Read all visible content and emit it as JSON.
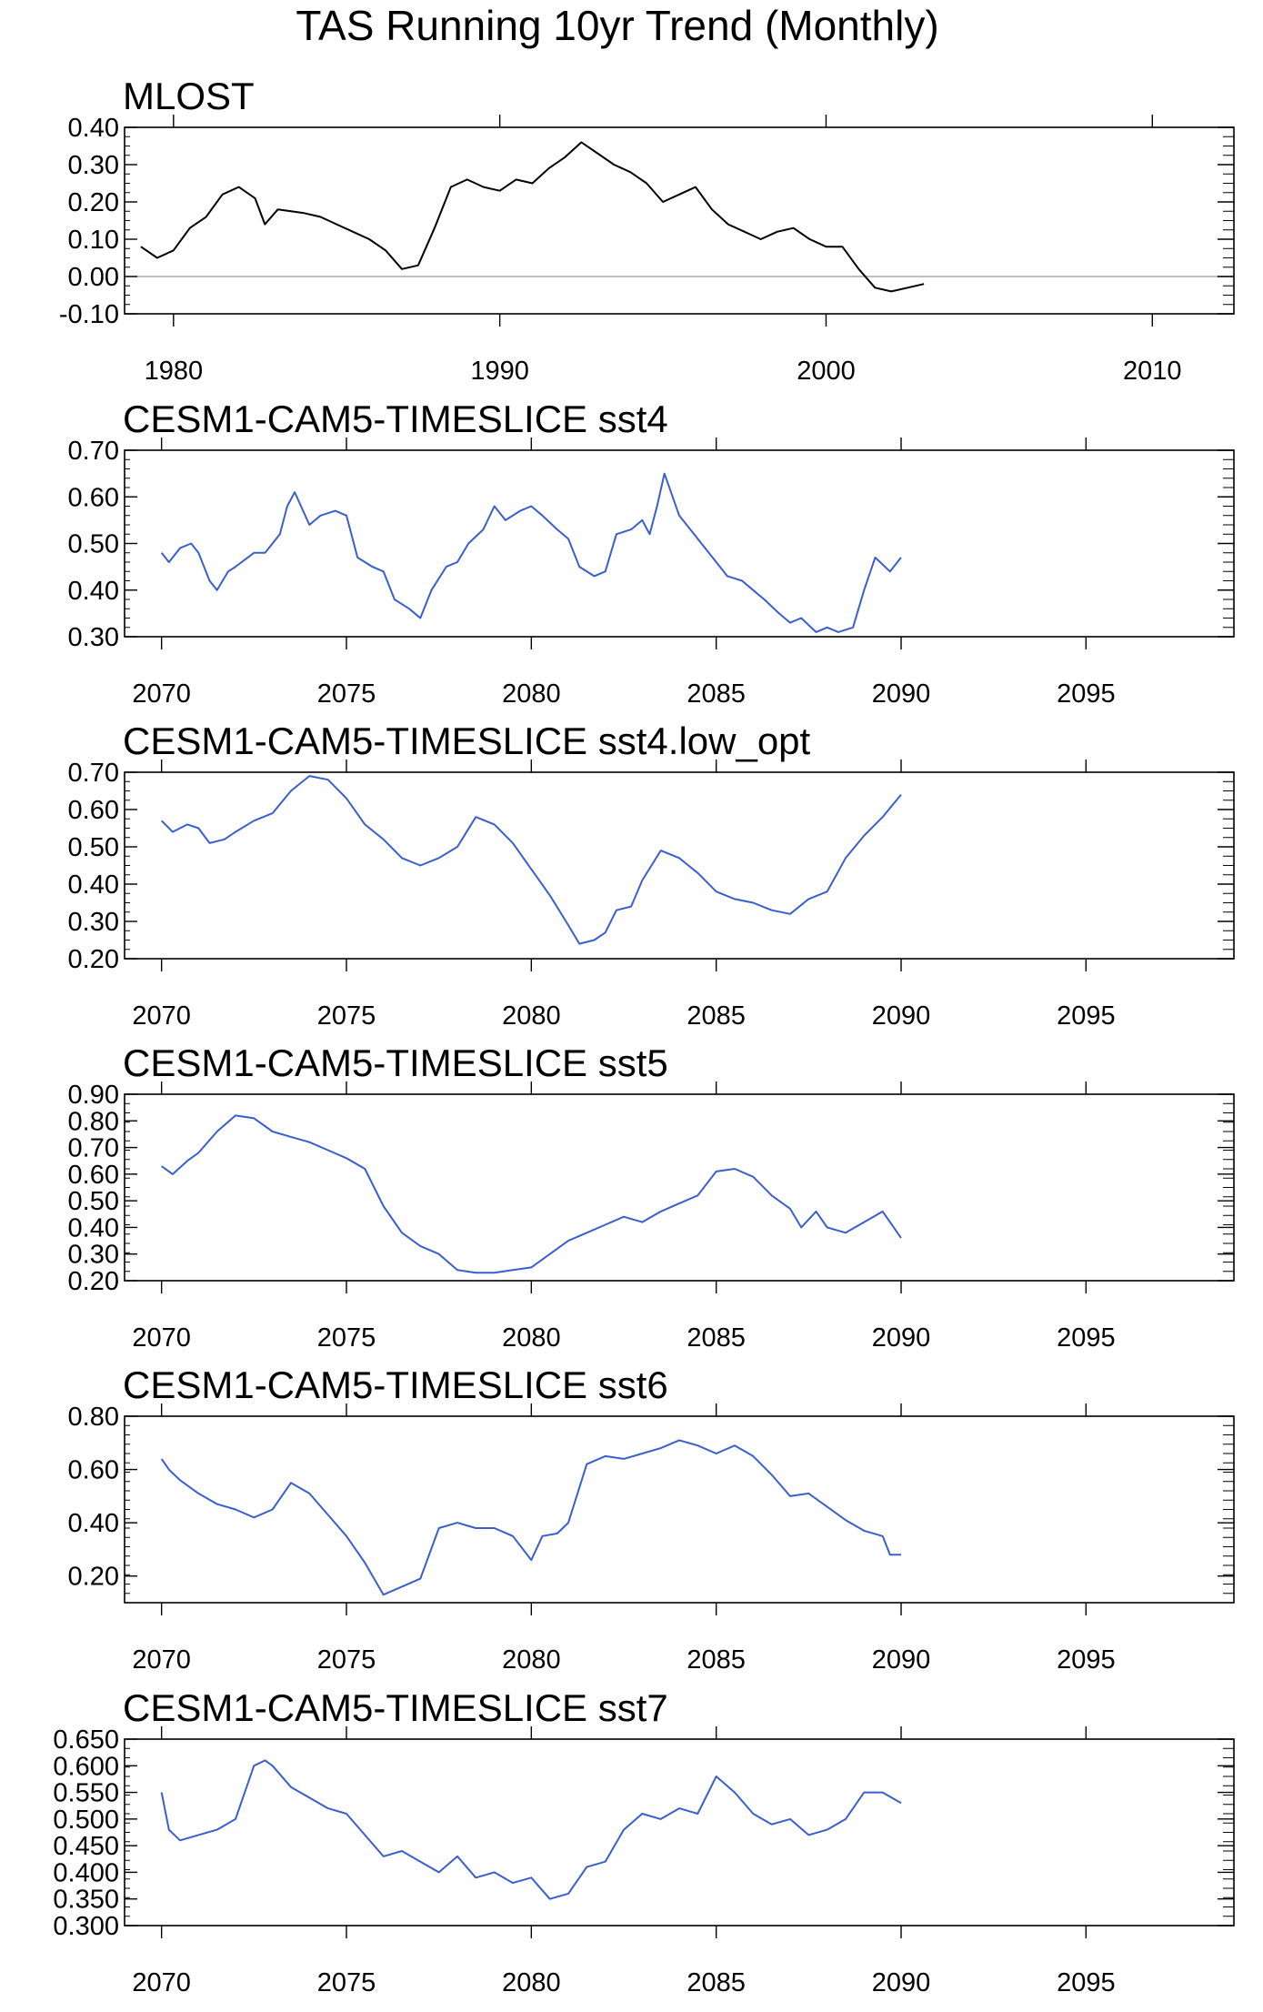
{
  "figure": {
    "title": "TAS Running 10yr Trend (Monthly)"
  },
  "chart_data": [
    {
      "type": "line",
      "title": "MLOST",
      "xlim": [
        1978.5,
        2012.5
      ],
      "ylim": [
        -0.1,
        0.4
      ],
      "xticks": [
        1980,
        1990,
        2000,
        2010
      ],
      "xtick_labels": [
        "1980",
        "1990",
        "2000",
        "2010"
      ],
      "yticks": [
        -0.1,
        0.0,
        0.1,
        0.2,
        0.3,
        0.4
      ],
      "ytick_labels": [
        "-0.10",
        "0.00",
        "0.10",
        "0.20",
        "0.30",
        "0.40"
      ],
      "reference_line": 0.0,
      "color": "#000000",
      "series": [
        {
          "x": [
            1979.0,
            1979.5,
            1980.0,
            1980.5,
            1981.0,
            1981.5,
            1982.0,
            1982.5,
            1982.8,
            1983.2,
            1984.0,
            1984.5,
            1985.0,
            1985.5,
            1986.0,
            1986.5,
            1987.0,
            1987.5,
            1988.0,
            1988.5,
            1989.0,
            1989.5,
            1990.0,
            1990.5,
            1991.0,
            1991.5,
            1992.0,
            1992.5,
            1993.0,
            1993.5,
            1994.0,
            1994.5,
            1995.0,
            1995.5,
            1996.0,
            1996.5,
            1997.0,
            1997.5,
            1998.0,
            1998.5,
            1999.0,
            1999.5,
            2000.0,
            2000.5,
            2001.0,
            2001.5,
            2002.0,
            2002.5,
            2003.0
          ],
          "y": [
            0.08,
            0.05,
            0.07,
            0.13,
            0.16,
            0.22,
            0.24,
            0.21,
            0.14,
            0.18,
            0.17,
            0.16,
            0.14,
            0.12,
            0.1,
            0.07,
            0.02,
            0.03,
            0.13,
            0.24,
            0.26,
            0.24,
            0.23,
            0.26,
            0.25,
            0.29,
            0.32,
            0.36,
            0.33,
            0.3,
            0.28,
            0.25,
            0.2,
            0.22,
            0.24,
            0.18,
            0.14,
            0.12,
            0.1,
            0.12,
            0.13,
            0.1,
            0.08,
            0.08,
            0.02,
            -0.03,
            -0.04,
            -0.03,
            -0.02
          ]
        }
      ]
    },
    {
      "type": "line",
      "title": "CESM1-CAM5-TIMESLICE sst4",
      "xlim": [
        2069,
        2099
      ],
      "ylim": [
        0.3,
        0.7
      ],
      "xticks": [
        2070,
        2075,
        2080,
        2085,
        2090,
        2095
      ],
      "xtick_labels": [
        "2070",
        "2075",
        "2080",
        "2085",
        "2090",
        "2095"
      ],
      "yticks": [
        0.3,
        0.4,
        0.5,
        0.6,
        0.7
      ],
      "ytick_labels": [
        "0.30",
        "0.40",
        "0.50",
        "0.60",
        "0.70"
      ],
      "color": "#3a5fcd",
      "series": [
        {
          "x": [
            2070.0,
            2070.2,
            2070.5,
            2070.8,
            2071.0,
            2071.3,
            2071.5,
            2071.8,
            2072.0,
            2072.5,
            2072.8,
            2073.0,
            2073.2,
            2073.4,
            2073.6,
            2074.0,
            2074.3,
            2074.7,
            2075.0,
            2075.3,
            2075.7,
            2076.0,
            2076.3,
            2076.7,
            2077.0,
            2077.3,
            2077.7,
            2078.0,
            2078.3,
            2078.7,
            2079.0,
            2079.3,
            2079.7,
            2080.0,
            2080.3,
            2080.7,
            2081.0,
            2081.3,
            2081.7,
            2082.0,
            2082.3,
            2082.7,
            2083.0,
            2083.2,
            2083.4,
            2083.6,
            2084.0,
            2084.3,
            2084.7,
            2085.0,
            2085.3,
            2085.7,
            2086.0,
            2086.3,
            2086.7,
            2087.0,
            2087.3,
            2087.7,
            2088.0,
            2088.3,
            2088.7,
            2089.0,
            2089.3,
            2089.7,
            2090.0
          ],
          "y": [
            0.48,
            0.46,
            0.49,
            0.5,
            0.48,
            0.42,
            0.4,
            0.44,
            0.45,
            0.48,
            0.48,
            0.5,
            0.52,
            0.58,
            0.61,
            0.54,
            0.56,
            0.57,
            0.56,
            0.47,
            0.45,
            0.44,
            0.38,
            0.36,
            0.34,
            0.4,
            0.45,
            0.46,
            0.5,
            0.53,
            0.58,
            0.55,
            0.57,
            0.58,
            0.56,
            0.53,
            0.51,
            0.45,
            0.43,
            0.44,
            0.52,
            0.53,
            0.55,
            0.52,
            0.58,
            0.65,
            0.56,
            0.53,
            0.49,
            0.46,
            0.43,
            0.42,
            0.4,
            0.38,
            0.35,
            0.33,
            0.34,
            0.31,
            0.32,
            0.31,
            0.32,
            0.4,
            0.47,
            0.44,
            0.47
          ]
        }
      ]
    },
    {
      "type": "line",
      "title": "CESM1-CAM5-TIMESLICE sst4.low_opt",
      "xlim": [
        2069,
        2099
      ],
      "ylim": [
        0.2,
        0.7
      ],
      "xticks": [
        2070,
        2075,
        2080,
        2085,
        2090,
        2095
      ],
      "xtick_labels": [
        "2070",
        "2075",
        "2080",
        "2085",
        "2090",
        "2095"
      ],
      "yticks": [
        0.2,
        0.3,
        0.4,
        0.5,
        0.6,
        0.7
      ],
      "ytick_labels": [
        "0.20",
        "0.30",
        "0.40",
        "0.50",
        "0.60",
        "0.70"
      ],
      "color": "#3a5fcd",
      "series": [
        {
          "x": [
            2070.0,
            2070.3,
            2070.7,
            2071.0,
            2071.3,
            2071.7,
            2072.0,
            2072.5,
            2073.0,
            2073.5,
            2074.0,
            2074.5,
            2075.0,
            2075.5,
            2076.0,
            2076.5,
            2077.0,
            2077.5,
            2078.0,
            2078.5,
            2079.0,
            2079.5,
            2080.0,
            2080.5,
            2081.0,
            2081.3,
            2081.7,
            2082.0,
            2082.3,
            2082.7,
            2083.0,
            2083.5,
            2084.0,
            2084.5,
            2085.0,
            2085.5,
            2086.0,
            2086.5,
            2087.0,
            2087.5,
            2088.0,
            2088.5,
            2089.0,
            2089.5,
            2090.0
          ],
          "y": [
            0.57,
            0.54,
            0.56,
            0.55,
            0.51,
            0.52,
            0.54,
            0.57,
            0.59,
            0.65,
            0.69,
            0.68,
            0.63,
            0.56,
            0.52,
            0.47,
            0.45,
            0.47,
            0.5,
            0.58,
            0.56,
            0.51,
            0.44,
            0.37,
            0.29,
            0.24,
            0.25,
            0.27,
            0.33,
            0.34,
            0.41,
            0.49,
            0.47,
            0.43,
            0.38,
            0.36,
            0.35,
            0.33,
            0.32,
            0.36,
            0.38,
            0.47,
            0.53,
            0.58,
            0.64
          ]
        }
      ]
    },
    {
      "type": "line",
      "title": "CESM1-CAM5-TIMESLICE sst5",
      "xlim": [
        2069,
        2099
      ],
      "ylim": [
        0.2,
        0.9
      ],
      "xticks": [
        2070,
        2075,
        2080,
        2085,
        2090,
        2095
      ],
      "xtick_labels": [
        "2070",
        "2075",
        "2080",
        "2085",
        "2090",
        "2095"
      ],
      "yticks": [
        0.2,
        0.3,
        0.4,
        0.5,
        0.6,
        0.7,
        0.8,
        0.9
      ],
      "ytick_labels": [
        "0.20",
        "0.30",
        "0.40",
        "0.50",
        "0.60",
        "0.70",
        "0.80",
        "0.90"
      ],
      "color": "#3a5fcd",
      "series": [
        {
          "x": [
            2070.0,
            2070.3,
            2070.7,
            2071.0,
            2071.5,
            2072.0,
            2072.5,
            2073.0,
            2073.5,
            2074.0,
            2074.5,
            2075.0,
            2075.5,
            2076.0,
            2076.5,
            2077.0,
            2077.5,
            2078.0,
            2078.5,
            2079.0,
            2079.5,
            2080.0,
            2080.5,
            2081.0,
            2081.5,
            2082.0,
            2082.5,
            2083.0,
            2083.5,
            2084.0,
            2084.5,
            2085.0,
            2085.5,
            2086.0,
            2086.5,
            2087.0,
            2087.3,
            2087.7,
            2088.0,
            2088.5,
            2089.0,
            2089.5,
            2090.0
          ],
          "y": [
            0.63,
            0.6,
            0.65,
            0.68,
            0.76,
            0.82,
            0.81,
            0.76,
            0.74,
            0.72,
            0.69,
            0.66,
            0.62,
            0.48,
            0.38,
            0.33,
            0.3,
            0.24,
            0.23,
            0.23,
            0.24,
            0.25,
            0.3,
            0.35,
            0.38,
            0.41,
            0.44,
            0.42,
            0.46,
            0.49,
            0.52,
            0.61,
            0.62,
            0.59,
            0.52,
            0.47,
            0.4,
            0.46,
            0.4,
            0.38,
            0.42,
            0.46,
            0.36
          ]
        }
      ]
    },
    {
      "type": "line",
      "title": "CESM1-CAM5-TIMESLICE sst6",
      "xlim": [
        2069,
        2099
      ],
      "ylim": [
        0.1,
        0.8
      ],
      "xticks": [
        2070,
        2075,
        2080,
        2085,
        2090,
        2095
      ],
      "xtick_labels": [
        "2070",
        "2075",
        "2080",
        "2085",
        "2090",
        "2095"
      ],
      "yticks": [
        0.2,
        0.4,
        0.6,
        0.8
      ],
      "ytick_labels": [
        "0.20",
        "0.40",
        "0.60",
        "0.80"
      ],
      "color": "#3a5fcd",
      "series": [
        {
          "x": [
            2070.0,
            2070.2,
            2070.5,
            2071.0,
            2071.5,
            2072.0,
            2072.5,
            2073.0,
            2073.5,
            2074.0,
            2074.5,
            2075.0,
            2075.5,
            2076.0,
            2076.5,
            2077.0,
            2077.5,
            2078.0,
            2078.5,
            2079.0,
            2079.5,
            2080.0,
            2080.3,
            2080.7,
            2081.0,
            2081.5,
            2082.0,
            2082.5,
            2083.0,
            2083.5,
            2084.0,
            2084.5,
            2085.0,
            2085.5,
            2086.0,
            2086.5,
            2087.0,
            2087.5,
            2088.0,
            2088.5,
            2089.0,
            2089.5,
            2089.7,
            2090.0
          ],
          "y": [
            0.64,
            0.6,
            0.56,
            0.51,
            0.47,
            0.45,
            0.42,
            0.45,
            0.55,
            0.51,
            0.43,
            0.35,
            0.25,
            0.13,
            0.16,
            0.19,
            0.38,
            0.4,
            0.38,
            0.38,
            0.35,
            0.26,
            0.35,
            0.36,
            0.4,
            0.62,
            0.65,
            0.64,
            0.66,
            0.68,
            0.71,
            0.69,
            0.66,
            0.69,
            0.65,
            0.58,
            0.5,
            0.51,
            0.46,
            0.41,
            0.37,
            0.35,
            0.28,
            0.28
          ]
        }
      ]
    },
    {
      "type": "line",
      "title": "CESM1-CAM5-TIMESLICE sst7",
      "xlim": [
        2069,
        2099
      ],
      "ylim": [
        0.3,
        0.65
      ],
      "xticks": [
        2070,
        2075,
        2080,
        2085,
        2090,
        2095
      ],
      "xtick_labels": [
        "2070",
        "2075",
        "2080",
        "2085",
        "2090",
        "2095"
      ],
      "yticks": [
        0.3,
        0.35,
        0.4,
        0.45,
        0.5,
        0.55,
        0.6,
        0.65
      ],
      "ytick_labels": [
        "0.300",
        "0.350",
        "0.400",
        "0.450",
        "0.500",
        "0.550",
        "0.600",
        "0.650"
      ],
      "color": "#3a5fcd",
      "series": [
        {
          "x": [
            2070.0,
            2070.2,
            2070.5,
            2071.0,
            2071.5,
            2072.0,
            2072.5,
            2072.8,
            2073.0,
            2073.5,
            2074.0,
            2074.5,
            2075.0,
            2075.5,
            2076.0,
            2076.5,
            2077.0,
            2077.5,
            2078.0,
            2078.5,
            2079.0,
            2079.5,
            2080.0,
            2080.5,
            2081.0,
            2081.5,
            2082.0,
            2082.5,
            2083.0,
            2083.5,
            2084.0,
            2084.5,
            2085.0,
            2085.5,
            2086.0,
            2086.5,
            2087.0,
            2087.5,
            2088.0,
            2088.5,
            2089.0,
            2089.5,
            2090.0
          ],
          "y": [
            0.55,
            0.48,
            0.46,
            0.47,
            0.48,
            0.5,
            0.6,
            0.61,
            0.6,
            0.56,
            0.54,
            0.52,
            0.51,
            0.47,
            0.43,
            0.44,
            0.42,
            0.4,
            0.43,
            0.39,
            0.4,
            0.38,
            0.39,
            0.35,
            0.36,
            0.41,
            0.42,
            0.48,
            0.51,
            0.5,
            0.52,
            0.51,
            0.58,
            0.55,
            0.51,
            0.49,
            0.5,
            0.47,
            0.48,
            0.5,
            0.55,
            0.55,
            0.53
          ]
        }
      ]
    }
  ]
}
